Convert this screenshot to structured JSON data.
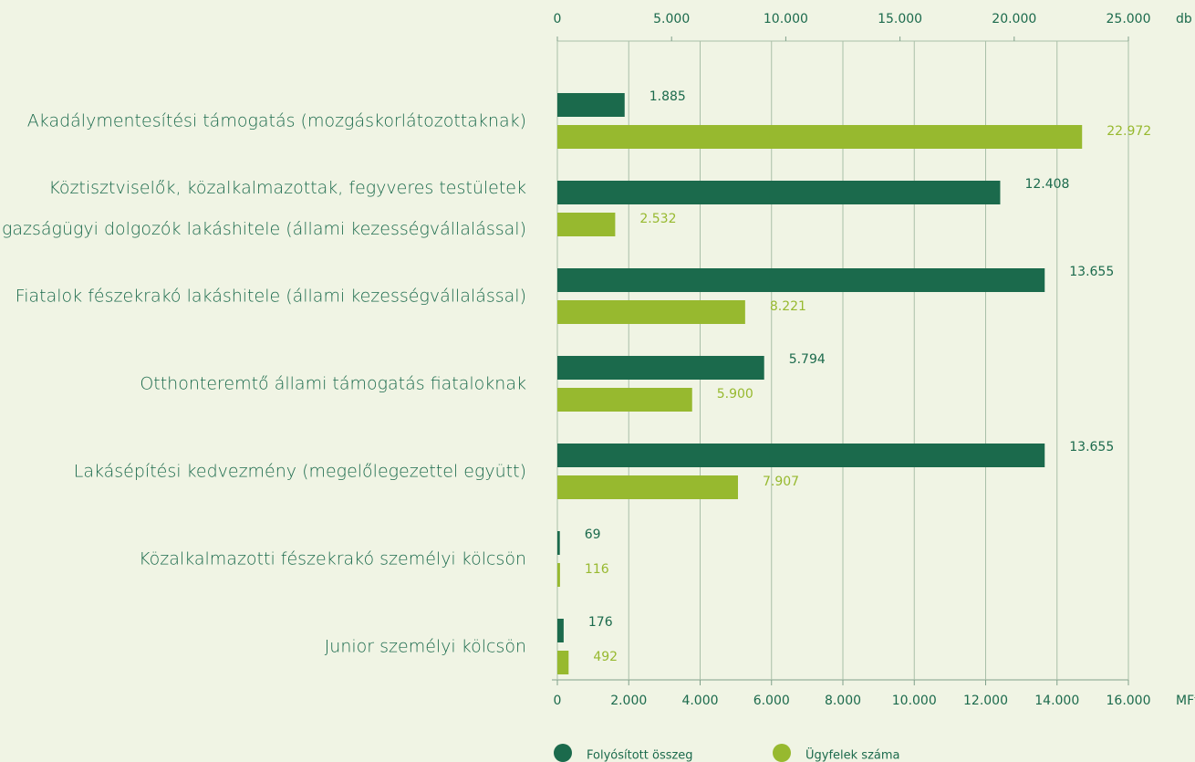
{
  "chart_data": {
    "type": "hbar",
    "categories": [
      "Akadálymentesítési támogatás (mozgáskorlátozottaknak)",
      "Köztisztviselők, közalkalmazottak, fegyveres testületek\nés igazságügyi dolgozók lakáshitele (állami kezességvállalással)",
      "Fiatalok fészekrakó lakáshitele (állami kezességvállalással)",
      "Otthonteremtő állami támogatás fiataloknak",
      "Lakásépítési kedvezmény (megelőlegezettel együtt)",
      "Közalkalmazotti fészekrakó személyi kölcsön",
      "Junior személyi kölcsön"
    ],
    "series": [
      {
        "name": "Folyósított összeg",
        "color": "#1b6a4c",
        "axis": "x",
        "values": [
          1885,
          12408,
          13655,
          5794,
          13655,
          69,
          176
        ],
        "value_labels": [
          "1.885",
          "12.408",
          "13.655",
          "5.794",
          "13.655",
          "69",
          "176"
        ]
      },
      {
        "name": "Ügyfelek száma",
        "color": "#97b92f",
        "axis": "x2",
        "values": [
          22972,
          2532,
          8221,
          5900,
          7907,
          116,
          492
        ],
        "value_labels": [
          "22.972",
          "2.532",
          "8.221",
          "5.900",
          "7.907",
          "116",
          "492"
        ]
      }
    ],
    "x_label": "MFt",
    "x2_label": "db",
    "xlim": [
      0,
      16000
    ],
    "xticks": [
      0,
      {
        "value": 2000,
        "label": "2.000"
      },
      {
        "value": 4000,
        "label": "4.000"
      },
      {
        "value": 6000,
        "label": "6.000"
      },
      {
        "value": 8000,
        "label": "8.000"
      },
      {
        "value": 10000,
        "label": "10.000"
      },
      {
        "value": 12000,
        "label": "12.000"
      },
      {
        "value": 14000,
        "label": "14.000"
      },
      {
        "value": 16000,
        "label": "16.000"
      }
    ],
    "x2lim": [
      0,
      25000
    ],
    "x2ticks": [
      0,
      {
        "value": 5000,
        "label": "5.000"
      },
      {
        "value": 10000,
        "label": "10.000"
      },
      {
        "value": 15000,
        "label": "15.000"
      },
      {
        "value": 20000,
        "label": "20.000"
      },
      {
        "value": 25000,
        "label": "25.000"
      }
    ],
    "grid": true,
    "legend": "bottom"
  }
}
